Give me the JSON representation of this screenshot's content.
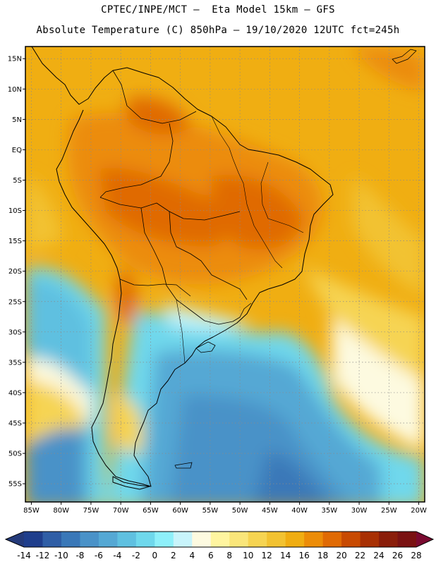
{
  "header": {
    "line1": "CPTEC/INPE/MCT –  Eta Model 15km – GFS",
    "line2": "Absolute Temperature (C) 850hPa – 19/10/2020 12UTC fct=245h"
  },
  "map": {
    "lat_labels": [
      "15N",
      "10N",
      "5N",
      "EQ",
      "5S",
      "10S",
      "15S",
      "20S",
      "25S",
      "30S",
      "35S",
      "40S",
      "45S",
      "50S",
      "55S"
    ],
    "lat_values": [
      15,
      10,
      5,
      0,
      -5,
      -10,
      -15,
      -20,
      -25,
      -30,
      -35,
      -40,
      -45,
      -50,
      -55
    ],
    "lon_labels": [
      "85W",
      "80W",
      "75W",
      "70W",
      "65W",
      "60W",
      "55W",
      "50W",
      "45W",
      "40W",
      "35W",
      "30W",
      "25W",
      "20W"
    ],
    "lon_values": [
      -85,
      -80,
      -75,
      -70,
      -65,
      -60,
      -55,
      -50,
      -45,
      -40,
      -35,
      -30,
      -25,
      -20
    ],
    "lat_range": [
      -58,
      17
    ],
    "lon_range": [
      -86,
      -19
    ]
  },
  "colorbar": {
    "labels": [
      "-14",
      "-12",
      "-10",
      "-8",
      "-6",
      "-4",
      "-2",
      "0",
      "2",
      "4",
      "6",
      "8",
      "10",
      "12",
      "14",
      "16",
      "18",
      "20",
      "22",
      "24",
      "26",
      "28"
    ],
    "colors": [
      "#1f3e8c",
      "#2f5ea6",
      "#3a78b8",
      "#4a92c8",
      "#55a8d4",
      "#5fc0e0",
      "#6fd8ec",
      "#8ef0fa",
      "#c8f4fb",
      "#fdfae0",
      "#fff5a0",
      "#fae67a",
      "#f6d452",
      "#f2c231",
      "#f0ad12",
      "#ec8c08",
      "#e06a04",
      "#c84a02",
      "#a83004",
      "#8a1e0a",
      "#7a1212"
    ]
  }
}
